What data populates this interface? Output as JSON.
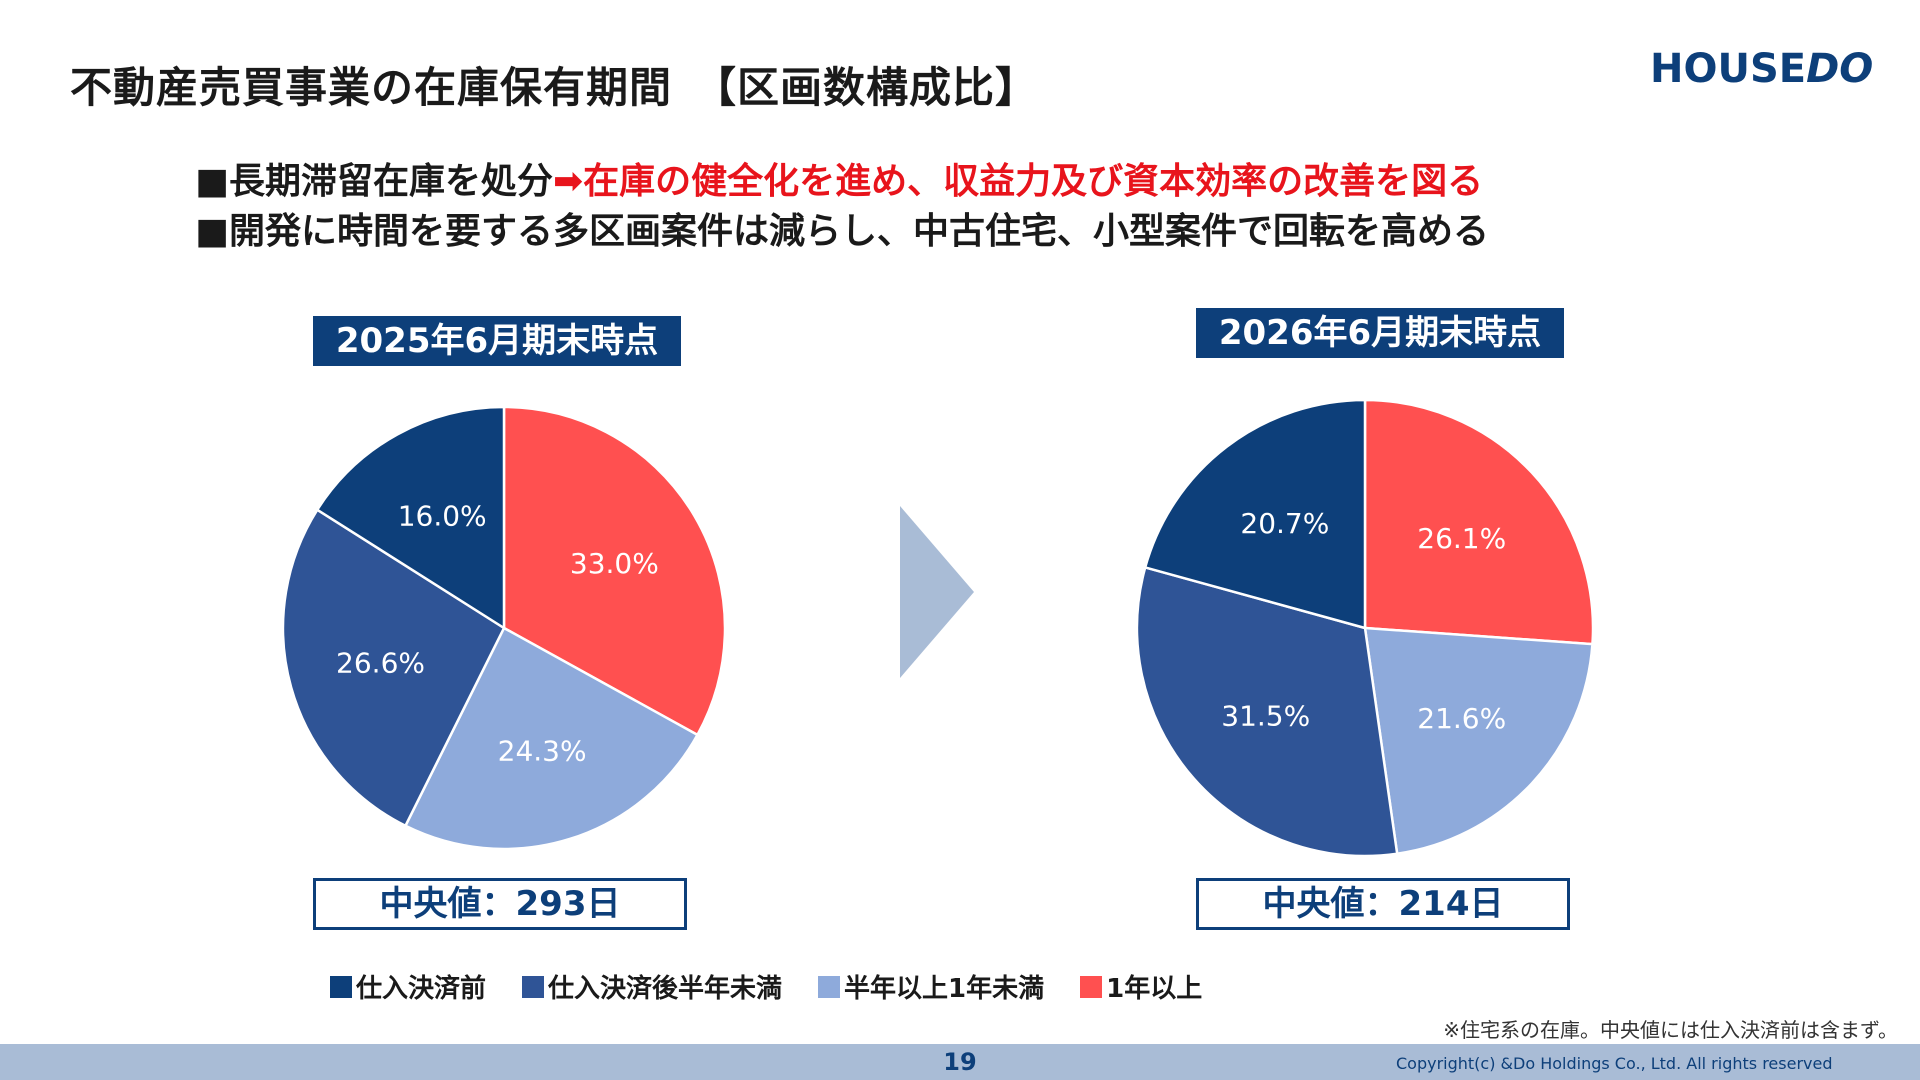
{
  "title": "不動産売買事業の在庫保有期間　【区画数構成比】",
  "logo": {
    "house": "HOUSE",
    "do": "DO"
  },
  "bullets": [
    {
      "prefix": "■長期滞留在庫を処分",
      "highlight": "➡在庫の健全化を進め、収益力及び資本効率の改善を図る"
    },
    {
      "prefix": "■開発に時間を要する多区画案件は減らし、中古住宅、小型案件で回転を高める",
      "highlight": ""
    }
  ],
  "colors": {
    "before_purchase": "#0d3f7a",
    "under_half_year": "#2f5496",
    "half_to_one_year": "#8eaadb",
    "over_one_year": "#ff5050",
    "arrow": "#a9bcd6"
  },
  "chart_data": [
    {
      "type": "pie",
      "title": "2025年6月期末時点",
      "median": "中央値：293日",
      "slices": [
        {
          "name": "1年以上",
          "value": 33.0,
          "label": "33.0%",
          "color": "#ff5050"
        },
        {
          "name": "半年以上1年未満",
          "value": 24.3,
          "label": "24.3%",
          "color": "#8eaadb"
        },
        {
          "name": "仕入決済後半年未満",
          "value": 26.6,
          "label": "26.6%",
          "color": "#2f5496"
        },
        {
          "name": "仕入決済前",
          "value": 16.0,
          "label": "16.0%",
          "color": "#0d3f7a"
        }
      ]
    },
    {
      "type": "pie",
      "title": "2026年6月期末時点",
      "median": "中央値：214日",
      "slices": [
        {
          "name": "1年以上",
          "value": 26.1,
          "label": "26.1%",
          "color": "#ff5050"
        },
        {
          "name": "半年以上1年未満",
          "value": 21.6,
          "label": "21.6%",
          "color": "#8eaadb"
        },
        {
          "name": "仕入決済後半年未満",
          "value": 31.5,
          "label": "31.5%",
          "color": "#2f5496"
        },
        {
          "name": "仕入決済前",
          "value": 20.7,
          "label": "20.7%",
          "color": "#0d3f7a"
        }
      ]
    }
  ],
  "legend": [
    {
      "label": "仕入決済前",
      "color": "#0d3f7a"
    },
    {
      "label": "仕入決済後半年未満",
      "color": "#2f5496"
    },
    {
      "label": "半年以上1年未満",
      "color": "#8eaadb"
    },
    {
      "label": "1年以上",
      "color": "#ff5050"
    }
  ],
  "note": "※住宅系の在庫。中央値には仕入決済前は含まず。",
  "footer": {
    "page_number": "19",
    "copyright": "Copyright(c) &Do Holdings Co., Ltd. All rights reserved"
  }
}
